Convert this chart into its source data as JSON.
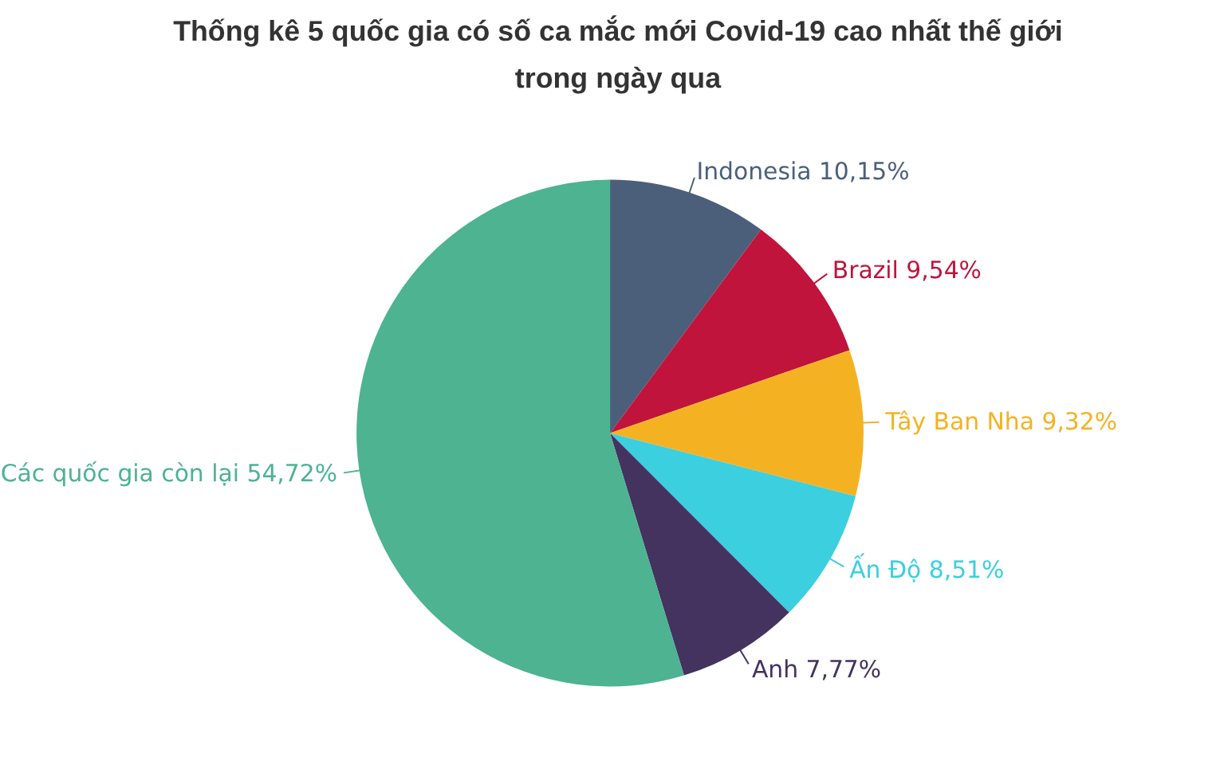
{
  "chart_data": {
    "type": "pie",
    "title": "Thống kê 5 quốc gia có số ca mắc  mới Covid-19 cao nhất thế giới\ntrong ngày qua",
    "categories": [
      "Indonesia",
      "Brazil",
      "Tây Ban Nha",
      "Ấn Độ",
      "Anh",
      "Các quốc gia còn lại"
    ],
    "values": [
      10.15,
      9.54,
      9.32,
      8.51,
      7.77,
      54.72
    ],
    "value_labels": [
      "10,15%",
      "9,54%",
      "9,32%",
      "8,51%",
      "7,77%",
      "54,72%"
    ],
    "colors": [
      "#4b5f7b",
      "#c0143c",
      "#f4b223",
      "#3ccfe0",
      "#44325f",
      "#4db391"
    ]
  }
}
